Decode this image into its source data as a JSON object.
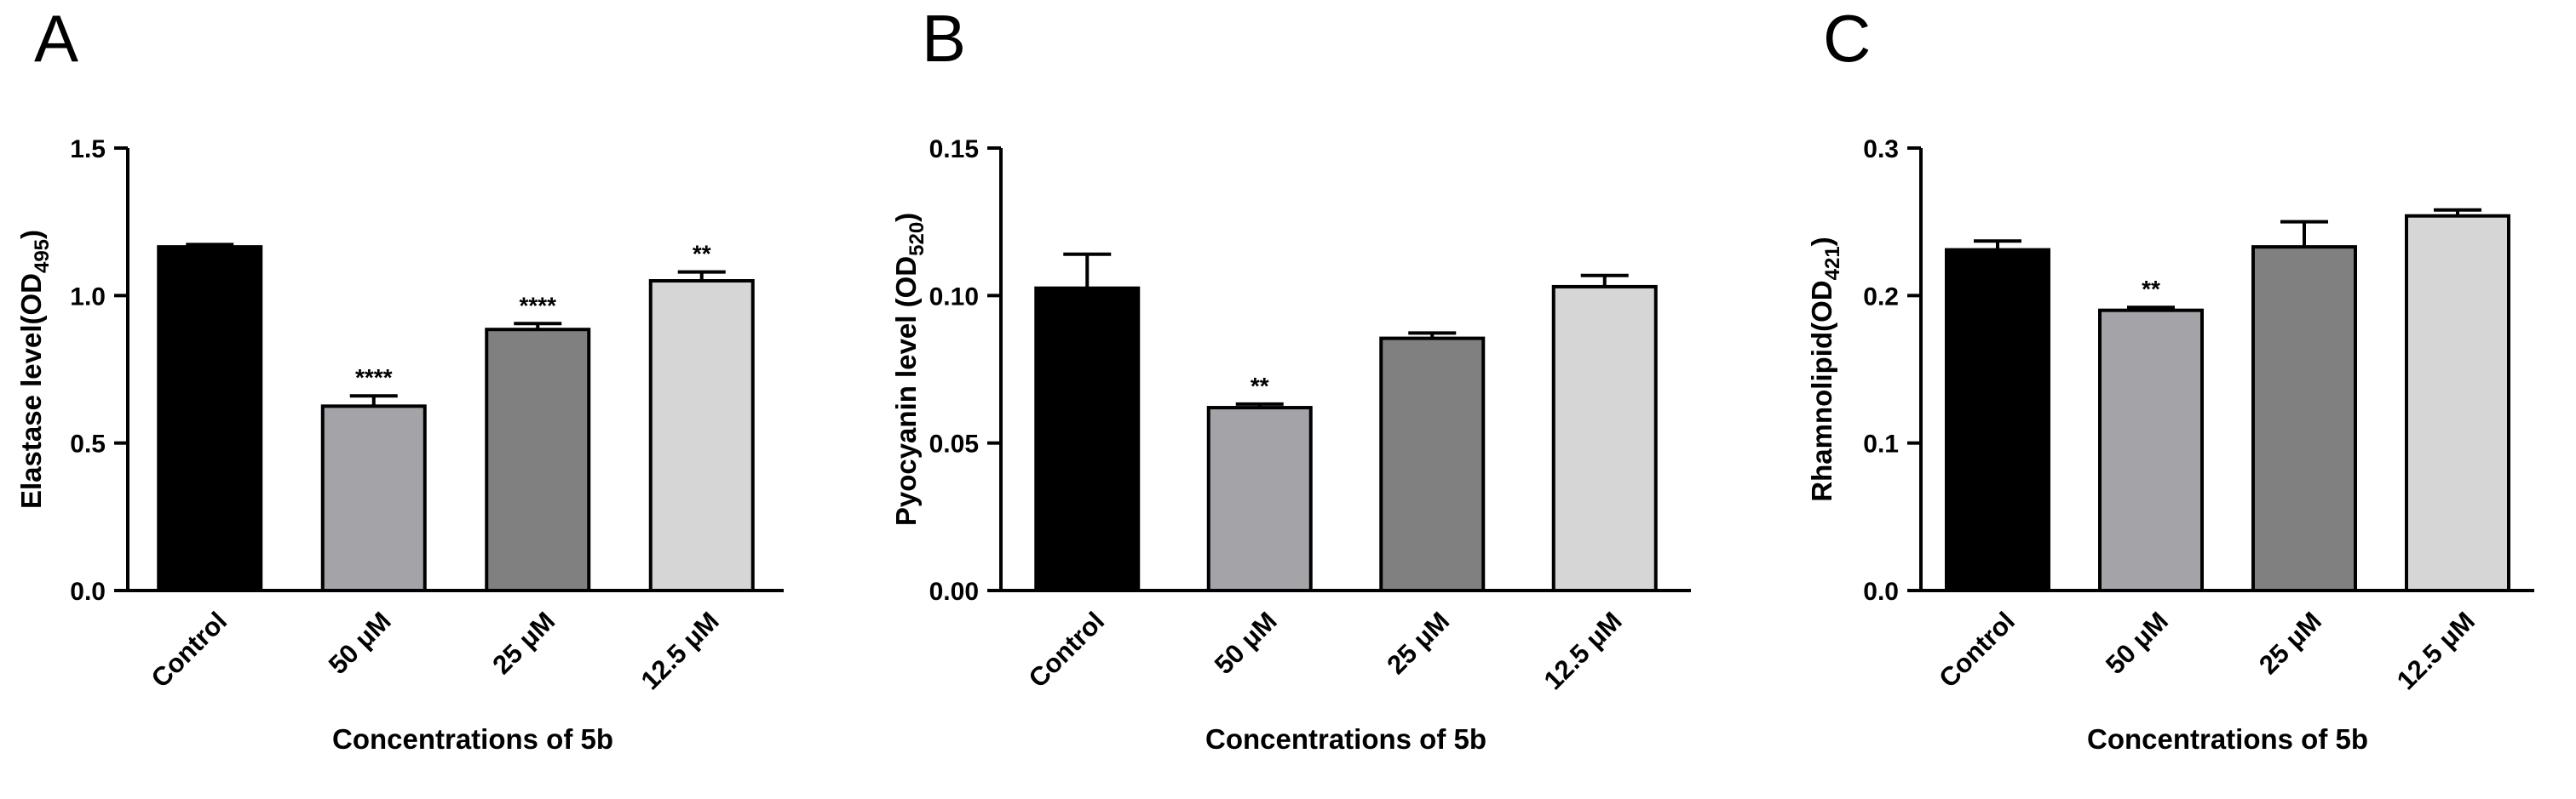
{
  "chart_data": [
    {
      "panel": "A",
      "type": "bar",
      "ylabel_main": "Elastase level(OD",
      "ylabel_sub": "495",
      "ylabel_end": ")",
      "xlabel": "Concentrations of 5b",
      "ylim": [
        0,
        1.5
      ],
      "yticks": [
        "0.0",
        "0.5",
        "1.0",
        "1.5"
      ],
      "ytick_values": [
        0,
        0.5,
        1.0,
        1.5
      ],
      "categories": [
        "Control",
        "50 μM",
        "25 μM",
        "12.5 μM"
      ],
      "values": [
        1.165,
        0.625,
        0.885,
        1.05
      ],
      "errors": [
        0.008,
        0.035,
        0.02,
        0.03
      ],
      "significance": [
        "",
        "****",
        "****",
        "**"
      ],
      "colors": [
        "#000000",
        "#a3a3a8",
        "#808080",
        "#d6d6d6"
      ]
    },
    {
      "panel": "B",
      "type": "bar",
      "ylabel_main": "Pyocyanin level (OD",
      "ylabel_sub": "520",
      "ylabel_end": ")",
      "xlabel": "Concentrations of 5b",
      "ylim": [
        0,
        0.15
      ],
      "yticks": [
        "0.00",
        "0.05",
        "0.10",
        "0.15"
      ],
      "ytick_values": [
        0,
        0.05,
        0.1,
        0.15
      ],
      "categories": [
        "Control",
        "50 μM",
        "25 μM",
        "12.5 μM"
      ],
      "values": [
        0.1025,
        0.062,
        0.0855,
        0.103
      ],
      "errors": [
        0.0115,
        0.0012,
        0.0018,
        0.0038
      ],
      "significance": [
        "",
        "**",
        "",
        ""
      ],
      "colors": [
        "#000000",
        "#a3a3a8",
        "#808080",
        "#d6d6d6"
      ]
    },
    {
      "panel": "C",
      "type": "bar",
      "ylabel_main": "Rhamnolipid(OD",
      "ylabel_sub": "421",
      "ylabel_end": ")",
      "xlabel": "Concentrations of 5b",
      "ylim": [
        0,
        0.3
      ],
      "yticks": [
        "0.0",
        "0.1",
        "0.2",
        "0.3"
      ],
      "ytick_values": [
        0,
        0.1,
        0.2,
        0.3
      ],
      "categories": [
        "Control",
        "50 μM",
        "25 μM",
        "12.5 μM"
      ],
      "values": [
        0.231,
        0.19,
        0.233,
        0.254
      ],
      "errors": [
        0.006,
        0.002,
        0.017,
        0.004
      ],
      "significance": [
        "",
        "**",
        "",
        ""
      ],
      "colors": [
        "#000000",
        "#a3a3a8",
        "#808080",
        "#d6d6d6"
      ]
    }
  ]
}
